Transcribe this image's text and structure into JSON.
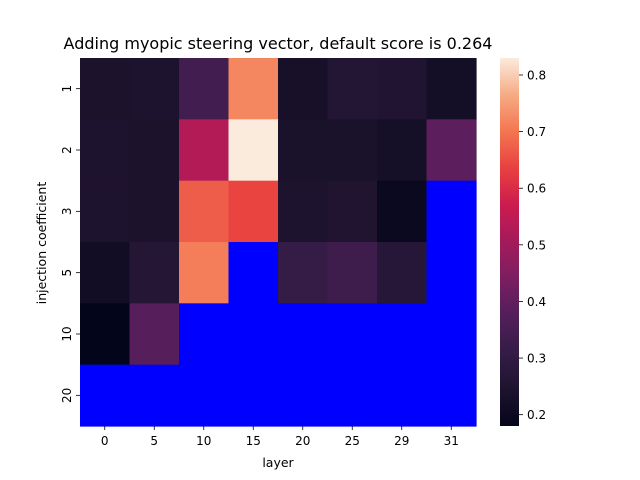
{
  "chart_data": {
    "type": "heatmap",
    "title": "Adding myopic steering vector, default score is 0.264",
    "xlabel": "layer",
    "ylabel": "injection coefficient",
    "x_categories": [
      "0",
      "5",
      "10",
      "15",
      "20",
      "25",
      "29",
      "31"
    ],
    "y_categories": [
      "1",
      "2",
      "3",
      "5",
      "10",
      "20"
    ],
    "values": [
      [
        0.24,
        0.245,
        0.34,
        0.72,
        0.23,
        0.26,
        0.255,
        0.22
      ],
      [
        0.245,
        0.24,
        0.53,
        0.83,
        0.235,
        0.235,
        0.225,
        0.39
      ],
      [
        0.245,
        0.24,
        0.67,
        0.64,
        0.245,
        0.25,
        0.2,
        null
      ],
      [
        0.215,
        0.265,
        0.71,
        null,
        0.31,
        0.33,
        0.27,
        null
      ],
      [
        0.18,
        0.38,
        null,
        null,
        null,
        null,
        null,
        null
      ],
      [
        null,
        null,
        null,
        null,
        null,
        null,
        null,
        null
      ]
    ],
    "missing_color": "#0000ff",
    "colormap": "rocket",
    "colorbar": {
      "vmin": 0.18,
      "vmax": 0.83,
      "ticks": [
        "0.2",
        "0.3",
        "0.4",
        "0.5",
        "0.6",
        "0.7",
        "0.8"
      ]
    },
    "grid": false
  }
}
